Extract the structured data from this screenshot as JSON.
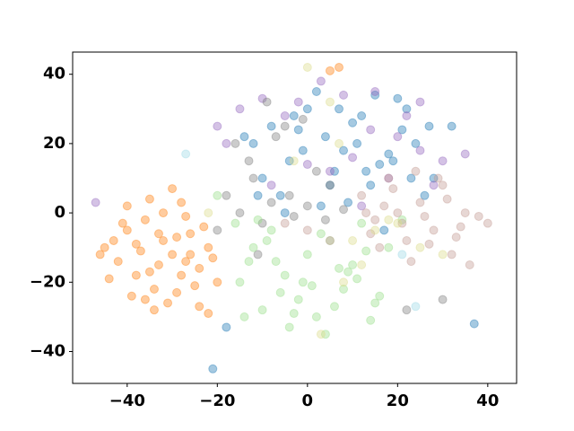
{
  "chart_data": {
    "type": "scatter",
    "xlim": [
      -52.1,
      46.4
    ],
    "ylim": [
      -49.2,
      46.4
    ],
    "xticks": [
      {
        "value": -40,
        "label": "−40"
      },
      {
        "value": -20,
        "label": "−20"
      },
      0,
      20,
      40
    ],
    "yticks": [
      {
        "value": -40,
        "label": "−40"
      },
      {
        "value": -20,
        "label": "−20"
      },
      0,
      20,
      40
    ],
    "alpha": 0.4,
    "series": [
      {
        "color": "#ff7f0e",
        "x": [
          -45,
          -42,
          -40,
          -38,
          -36,
          -34,
          -32,
          -30,
          -28,
          -26,
          -24,
          -22,
          -20,
          -44,
          -41,
          -39,
          -37,
          -35,
          -33,
          -31,
          -29,
          -27,
          -25,
          -23,
          -21,
          -43,
          -38,
          -35,
          -32,
          -29,
          -26,
          -36,
          -30,
          -34,
          -40,
          -28,
          -24,
          -46,
          -33,
          -27,
          -22,
          5,
          7
        ],
        "y": [
          -10,
          -14,
          -5,
          -18,
          -2,
          -22,
          -8,
          -12,
          3,
          -6,
          -16,
          -10,
          -20,
          -19,
          -3,
          -24,
          -11,
          4,
          -15,
          -26,
          -7,
          -1,
          -21,
          -4,
          -13,
          -8,
          -9,
          -17,
          0,
          -23,
          -12,
          -25,
          7,
          -28,
          2,
          -18,
          -27,
          -12,
          -6,
          -14,
          -29,
          41,
          42
        ]
      },
      {
        "color": "#1f77b4",
        "x": [
          -12,
          -8,
          -4,
          0,
          4,
          8,
          12,
          16,
          20,
          24,
          28,
          -10,
          -6,
          -2,
          2,
          6,
          10,
          14,
          18,
          22,
          26,
          -14,
          -5,
          3,
          11,
          19,
          27,
          -1,
          7,
          15,
          23,
          9,
          13,
          5,
          -3,
          21,
          17,
          -21,
          37,
          -18,
          32,
          -11
        ],
        "y": [
          20,
          25,
          15,
          30,
          22,
          18,
          28,
          14,
          33,
          20,
          10,
          10,
          5,
          24,
          35,
          12,
          26,
          8,
          17,
          30,
          5,
          22,
          0,
          2,
          20,
          15,
          25,
          18,
          30,
          34,
          10,
          3,
          12,
          8,
          28,
          24,
          -5,
          -45,
          -32,
          -33,
          25,
          5
        ]
      },
      {
        "color": "#9467bd",
        "x": [
          -20,
          -15,
          -10,
          -5,
          0,
          5,
          10,
          15,
          20,
          25,
          30,
          -18,
          -2,
          8,
          18,
          28,
          12,
          22,
          -47,
          35,
          3,
          14,
          -8,
          25
        ],
        "y": [
          25,
          30,
          33,
          28,
          14,
          12,
          16,
          35,
          22,
          18,
          15,
          20,
          32,
          34,
          10,
          8,
          2,
          28,
          3,
          17,
          38,
          24,
          8,
          32
        ]
      },
      {
        "color": "#7f7f7f",
        "x": [
          -18,
          -15,
          -12,
          -10,
          -8,
          -5,
          -3,
          0,
          2,
          5,
          -16,
          -13,
          -7,
          -1,
          4,
          8,
          -9,
          -4,
          -20,
          22,
          -11,
          30
        ],
        "y": [
          5,
          0,
          10,
          -3,
          3,
          25,
          -1,
          2,
          12,
          8,
          20,
          15,
          22,
          27,
          -2,
          1,
          32,
          5,
          -5,
          -28,
          -12,
          -25
        ]
      },
      {
        "color": "#98df8a",
        "x": [
          -15,
          -12,
          -10,
          -8,
          -5,
          -2,
          0,
          2,
          5,
          8,
          10,
          12,
          15,
          18,
          -14,
          -11,
          -7,
          -4,
          -1,
          3,
          6,
          9,
          13,
          16,
          -9,
          -3,
          4,
          11,
          -16,
          -6,
          7,
          14,
          -20,
          21,
          1,
          -13
        ],
        "y": [
          -20,
          -10,
          -28,
          -5,
          -18,
          -25,
          -12,
          -30,
          -8,
          -22,
          -15,
          -3,
          -26,
          -10,
          -30,
          -2,
          -14,
          -33,
          -20,
          -6,
          -27,
          -17,
          -11,
          -24,
          -8,
          -29,
          -35,
          -19,
          -3,
          -23,
          -16,
          -31,
          5,
          -2,
          -21,
          -14
        ]
      },
      {
        "color": "#c49c94",
        "x": [
          12,
          15,
          18,
          20,
          22,
          25,
          28,
          30,
          32,
          35,
          38,
          14,
          17,
          21,
          24,
          27,
          31,
          34,
          16,
          19,
          23,
          26,
          29,
          33,
          13,
          36,
          -5,
          0,
          5,
          40
        ],
        "y": [
          5,
          -2,
          10,
          0,
          -8,
          3,
          -5,
          8,
          -12,
          0,
          -1,
          -6,
          2,
          -3,
          12,
          -9,
          4,
          -4,
          -10,
          7,
          -14,
          -1,
          10,
          -7,
          0,
          -15,
          -3,
          -5,
          -8,
          -3
        ]
      },
      {
        "color": "#dbdb8d",
        "x": [
          -22,
          0,
          5,
          10,
          15,
          20,
          25,
          30,
          8,
          -3,
          12,
          18,
          3,
          7
        ],
        "y": [
          0,
          42,
          32,
          -8,
          -5,
          -3,
          -10,
          -12,
          -20,
          15,
          -15,
          -2,
          -35,
          20
        ]
      },
      {
        "color": "#9edae5",
        "x": [
          -27,
          21,
          24
        ],
        "y": [
          17,
          -12,
          -27
        ]
      }
    ]
  }
}
